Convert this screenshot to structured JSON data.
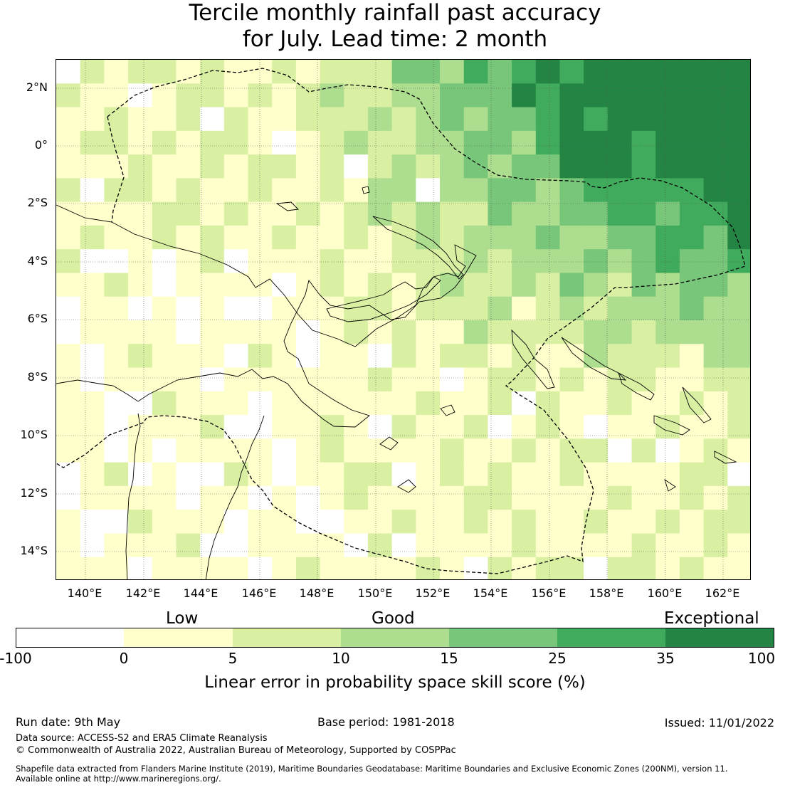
{
  "title": {
    "line1": "Tercile monthly rainfall past accuracy",
    "line2": "for July. Lead time: 2 month"
  },
  "map": {
    "lat_labels": [
      "2°N",
      "0°",
      "2°S",
      "4°S",
      "6°S",
      "8°S",
      "10°S",
      "12°S",
      "14°S"
    ],
    "lon_labels": [
      "140°E",
      "142°E",
      "144°E",
      "146°E",
      "148°E",
      "150°E",
      "152°E",
      "154°E",
      "156°E",
      "158°E",
      "160°E",
      "162°E"
    ]
  },
  "legend": {
    "categories": [
      "Low",
      "Good",
      "Exceptional"
    ],
    "ticks": [
      "-100",
      "0",
      "5",
      "10",
      "15",
      "25",
      "35",
      "100"
    ],
    "colors": [
      "#ffffff",
      "#ffffcc",
      "#d9f0a3",
      "#addd8e",
      "#78c679",
      "#41ab5d",
      "#238443"
    ],
    "label": "Linear error in probability space skill score (%)"
  },
  "footer": {
    "run_date": "Run date: 9th May",
    "base_period": "Base period: 1981-2018",
    "issued": "Issued: 11/01/2022",
    "data_source": "Data source: ACCESS-S2 and ERA5 Climate Reanalysis",
    "copyright": "© Commonwealth of Australia 2022, Australian Bureau of Meteorology, Supported by COSPPac",
    "shapefile1": "Shapefile data extracted from Flanders Marine Institute (2019), Maritime Boundaries Geodatabase: Maritime Boundaries and Exclusive Economic Zones (200NM), version 11.",
    "shapefile2": "Available online at http://www.marineregions.org/."
  }
}
